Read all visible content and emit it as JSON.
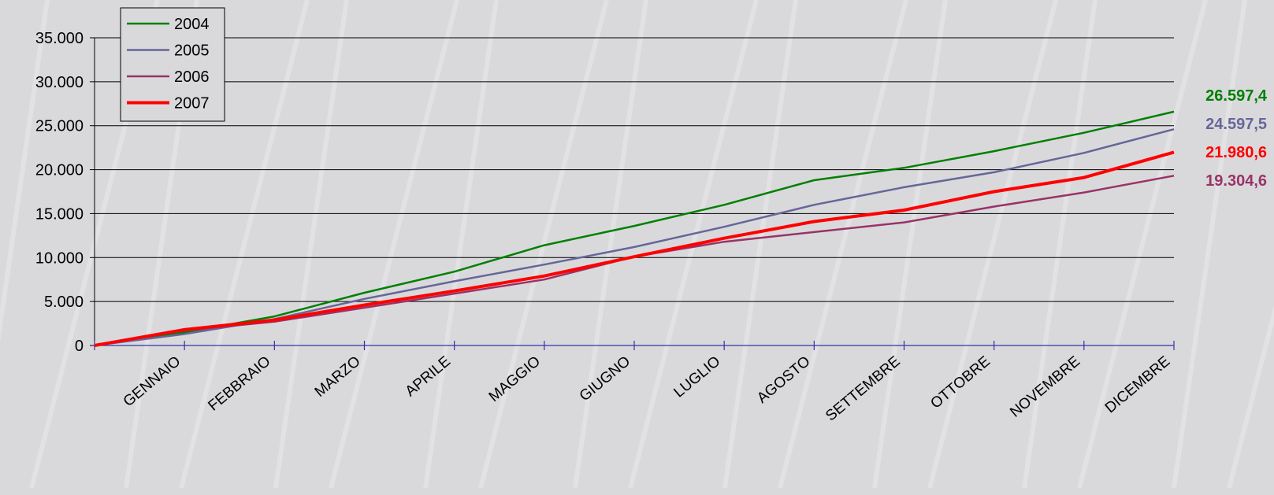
{
  "chart_data": {
    "type": "line",
    "categories": [
      "",
      "GENNAIO",
      "FEBBRAIO",
      "MARZO",
      "APRILE",
      "MAGGIO",
      "GIUGNO",
      "LUGLIO",
      "AGOSTO",
      "SETTEMBRE",
      "OTTOBRE",
      "NOVEMBRE",
      "DICEMBRE"
    ],
    "ylim": [
      0,
      35000
    ],
    "yticks": [
      0,
      5000,
      10000,
      15000,
      20000,
      25000,
      30000,
      35000
    ],
    "ytick_labels": [
      "0",
      "5.000",
      "10.000",
      "15.000",
      "20.000",
      "25.000",
      "30.000",
      "35.000"
    ],
    "grid": true,
    "legend_position": "top-left",
    "series": [
      {
        "name": "2004",
        "color": "#008000",
        "emphasis": false,
        "values": [
          0,
          1500,
          3300,
          6000,
          8400,
          11400,
          13600,
          16000,
          18800,
          20200,
          22100,
          24200,
          26597.4
        ],
        "end_label": "26.597,4"
      },
      {
        "name": "2005",
        "color": "#666699",
        "emphasis": false,
        "values": [
          0,
          1300,
          3000,
          5300,
          7300,
          9200,
          11200,
          13500,
          16000,
          18000,
          19700,
          21900,
          24597.5
        ],
        "end_label": "24.597,5"
      },
      {
        "name": "2006",
        "color": "#993366",
        "emphasis": false,
        "values": [
          0,
          1700,
          2700,
          4300,
          5900,
          7500,
          10100,
          11800,
          12900,
          14000,
          15800,
          17400,
          19304.6
        ],
        "end_label": "19.304,6"
      },
      {
        "name": "2007",
        "color": "#ff0000",
        "emphasis": true,
        "values": [
          0,
          1800,
          2900,
          4600,
          6200,
          7900,
          10100,
          12200,
          14100,
          15400,
          17500,
          19100,
          21980.6
        ],
        "end_label": "21.980,6"
      }
    ]
  }
}
